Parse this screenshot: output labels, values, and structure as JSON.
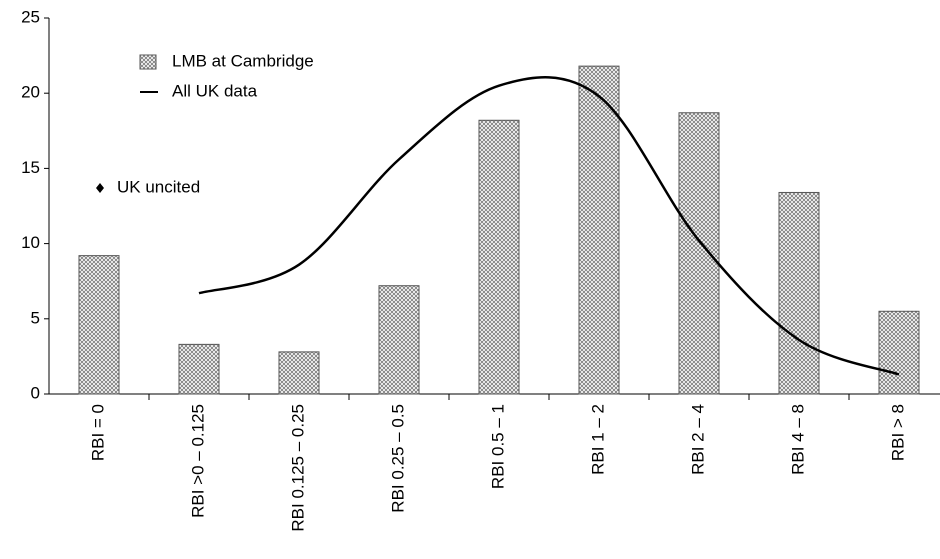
{
  "chart_data": {
    "type": "bar",
    "categories": [
      "RBI = 0",
      "RBI >0 – 0.125",
      "RBI 0.125 – 0.25",
      "RBI 0.25 – 0.5",
      "RBI 0.5 – 1",
      "RBI 1 – 2",
      "RBI 2 – 4",
      "RBI 4 – 8",
      "RBI > 8"
    ],
    "series": [
      {
        "name": "LMB at Cambridge",
        "type": "bar",
        "color": "#999999",
        "values": [
          9.2,
          3.3,
          2.8,
          7.2,
          18.2,
          21.8,
          18.7,
          13.4,
          5.5
        ]
      },
      {
        "name": "All UK data",
        "type": "line",
        "color": "#000000",
        "values": [
          null,
          6.7,
          8.6,
          15.6,
          20.5,
          19.8,
          10.2,
          3.6,
          1.3
        ]
      }
    ],
    "annotations": [
      {
        "text": "UK uncited"
      }
    ],
    "ylim": [
      0,
      25
    ],
    "yticks": [
      0,
      5,
      10,
      15,
      20,
      25
    ],
    "grid": false
  }
}
